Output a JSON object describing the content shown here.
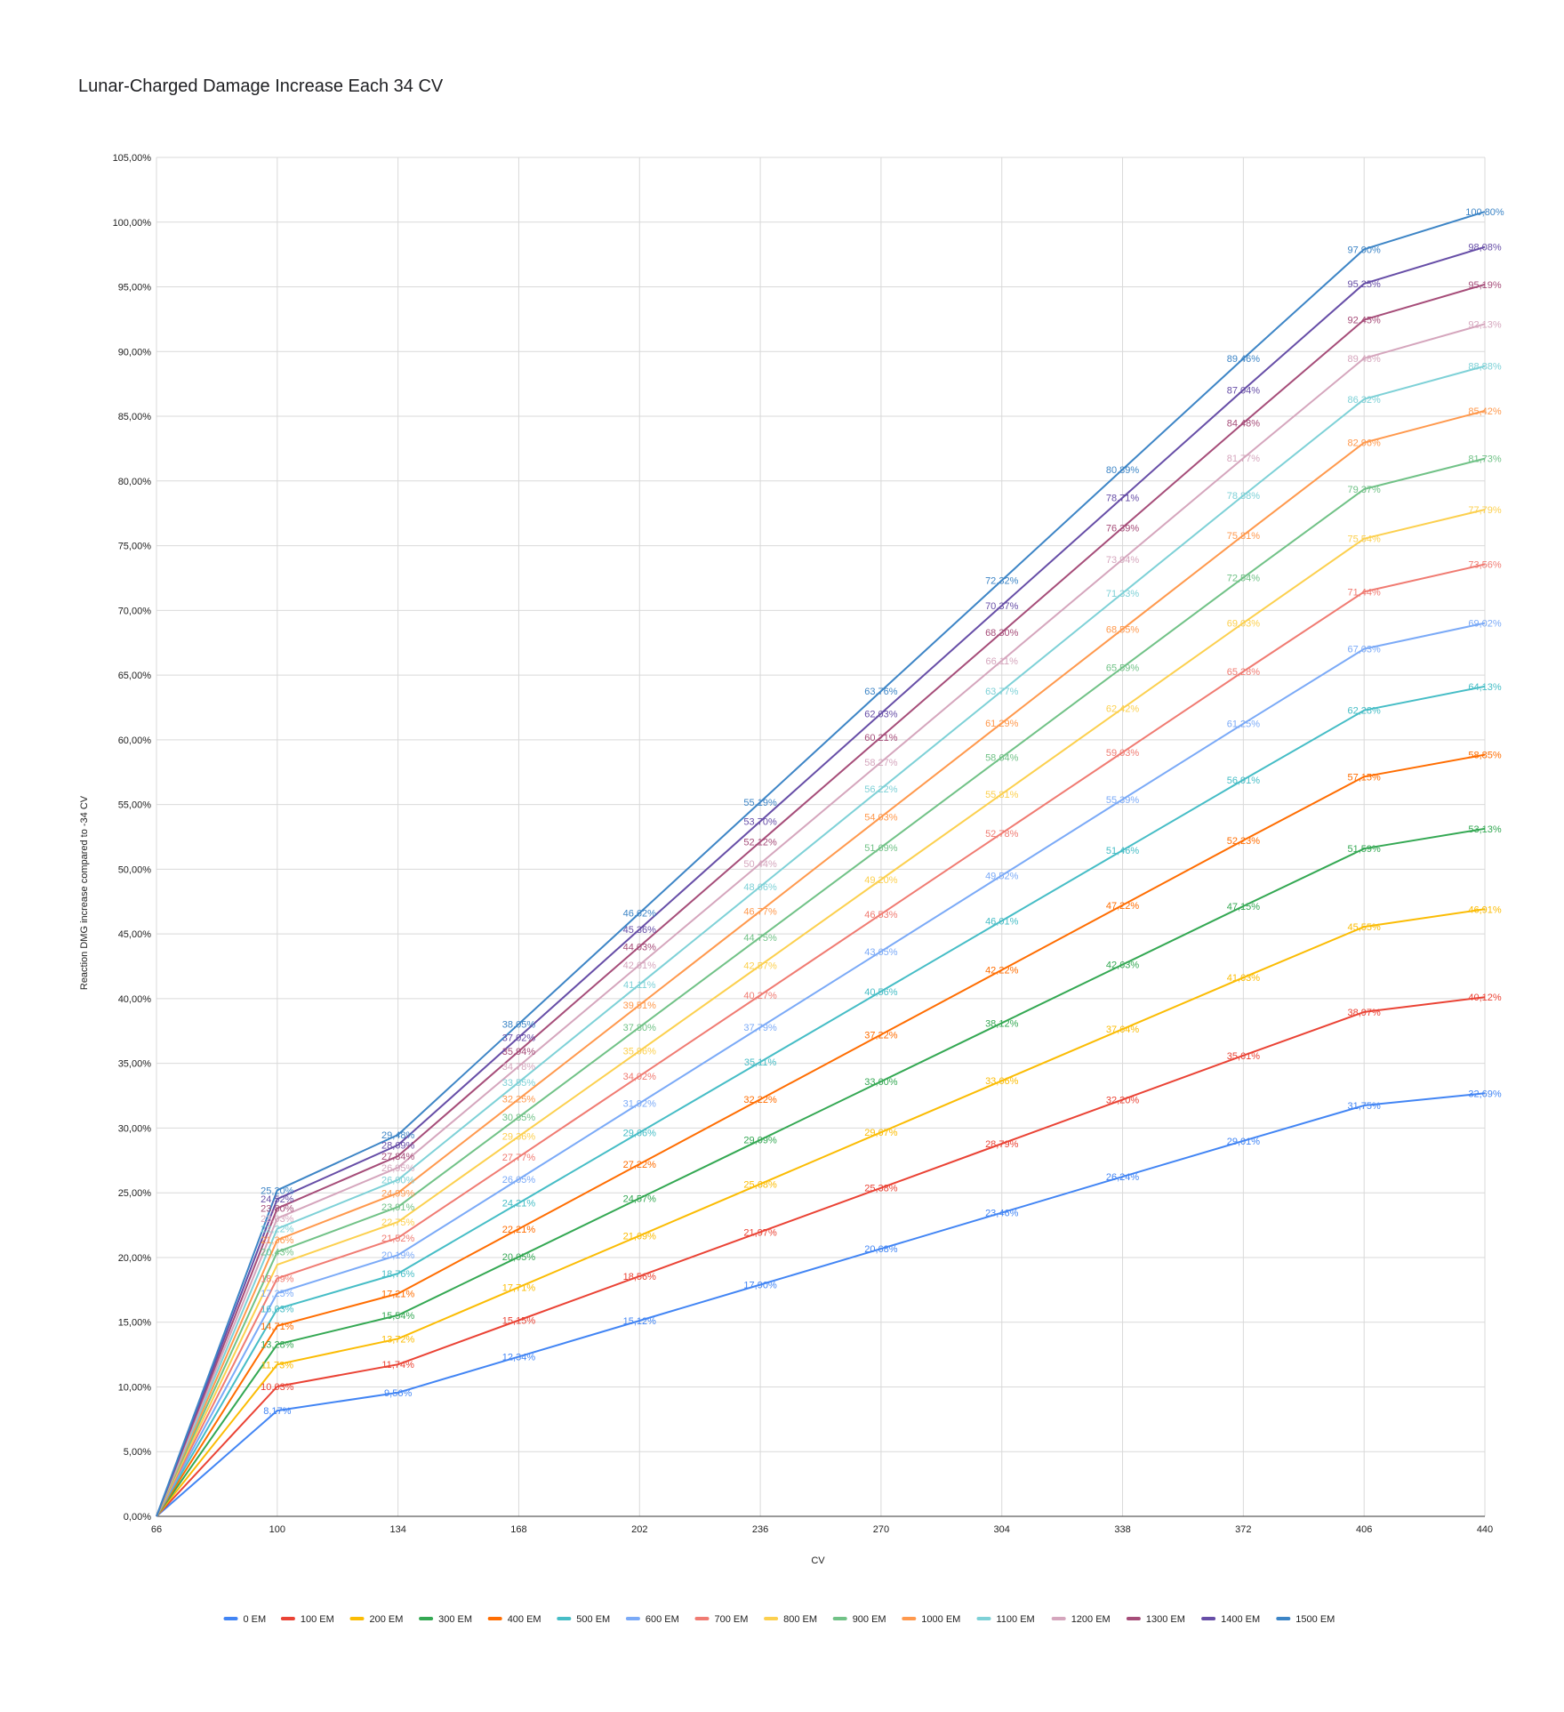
{
  "chart_data": {
    "type": "line",
    "title": "Lunar-Charged Damage Increase Each 34 CV",
    "xlabel": "CV",
    "ylabel": "Reaction DMG increase compared to -34 CV",
    "x": [
      66,
      100,
      134,
      168,
      202,
      236,
      270,
      304,
      338,
      372,
      406,
      440
    ],
    "x_tick_labels": [
      "66",
      "100",
      "134",
      "168",
      "202",
      "236",
      "270",
      "304",
      "338",
      "372",
      "406",
      "440"
    ],
    "ylim": [
      0,
      105
    ],
    "y_tick_labels": [
      "0,00%",
      "5,00%",
      "10,00%",
      "15,00%",
      "20,00%",
      "25,00%",
      "30,00%",
      "35,00%",
      "40,00%",
      "45,00%",
      "50,00%",
      "55,00%",
      "60,00%",
      "65,00%",
      "70,00%",
      "75,00%",
      "80,00%",
      "85,00%",
      "90,00%",
      "95,00%",
      "100,00%",
      "105,00%"
    ],
    "grid": true,
    "legend_position": "bottom",
    "series": [
      {
        "name": "0 EM",
        "color": "#4285f4",
        "values": [
          0,
          8.17,
          9.56,
          12.34,
          15.12,
          17.9,
          20.68,
          23.46,
          26.24,
          29.01,
          31.75,
          32.69
        ],
        "labels": [
          "",
          "8,17%",
          "9,56%",
          "12,34%",
          "15,12%",
          "17,90%",
          "20,68%",
          "23,46%",
          "26,24%",
          "29,01%",
          "31,75%",
          "32,69%"
        ]
      },
      {
        "name": "100 EM",
        "color": "#ea4335",
        "values": [
          0,
          10.03,
          11.74,
          15.15,
          18.56,
          21.97,
          25.38,
          28.79,
          32.2,
          35.61,
          38.97,
          40.12
        ],
        "labels": [
          "",
          "10,03%",
          "11,74%",
          "15,15%",
          "18,56%",
          "21,97%",
          "25,38%",
          "28,79%",
          "32,20%",
          "35,61%",
          "38,97%",
          "40,12%"
        ]
      },
      {
        "name": "200 EM",
        "color": "#fbbc04",
        "values": [
          0,
          11.73,
          13.72,
          17.71,
          21.69,
          25.68,
          29.67,
          33.66,
          37.64,
          41.63,
          45.55,
          46.91
        ],
        "labels": [
          "",
          "11,73%",
          "13,72%",
          "17,71%",
          "21,69%",
          "25,68%",
          "29,67%",
          "33,66%",
          "37,64%",
          "41,63%",
          "45,55%",
          "46,91%"
        ]
      },
      {
        "name": "300 EM",
        "color": "#34a853",
        "values": [
          0,
          13.28,
          15.54,
          20.05,
          24.57,
          29.09,
          33.6,
          38.12,
          42.63,
          47.15,
          51.59,
          53.13
        ],
        "labels": [
          "",
          "13,28%",
          "15,54%",
          "20,05%",
          "24,57%",
          "29,09%",
          "33,60%",
          "38,12%",
          "42,63%",
          "47,15%",
          "51,59%",
          "53,13%"
        ]
      },
      {
        "name": "400 EM",
        "color": "#ff6d01",
        "values": [
          0,
          14.71,
          17.21,
          22.21,
          27.22,
          32.22,
          37.22,
          42.22,
          47.22,
          52.23,
          57.15,
          58.85
        ],
        "labels": [
          "",
          "14,71%",
          "17,21%",
          "22,21%",
          "27,22%",
          "32,22%",
          "37,22%",
          "42,22%",
          "47,22%",
          "52,23%",
          "57,15%",
          "58,85%"
        ]
      },
      {
        "name": "500 EM",
        "color": "#46bdc6",
        "values": [
          0,
          16.03,
          18.76,
          24.21,
          29.66,
          35.11,
          40.56,
          46.01,
          51.46,
          56.91,
          62.28,
          64.13
        ],
        "labels": [
          "",
          "16,03%",
          "18,76%",
          "24,21%",
          "29,66%",
          "35,11%",
          "40,56%",
          "46,01%",
          "51,46%",
          "56,91%",
          "62,28%",
          "64,13%"
        ]
      },
      {
        "name": "600 EM",
        "color": "#7baaf7",
        "values": [
          0,
          17.25,
          20.19,
          26.05,
          31.92,
          37.79,
          43.65,
          49.52,
          55.39,
          61.25,
          67.03,
          69.02
        ],
        "labels": [
          "",
          "17,25%",
          "20,19%",
          "26,05%",
          "31,92%",
          "37,79%",
          "43,65%",
          "49,52%",
          "55,39%",
          "61,25%",
          "67,03%",
          "69,02%"
        ]
      },
      {
        "name": "700 EM",
        "color": "#f07b72",
        "values": [
          0,
          18.39,
          21.52,
          27.77,
          34.02,
          40.27,
          46.53,
          52.78,
          59.03,
          65.28,
          71.44,
          73.56
        ],
        "labels": [
          "",
          "18,39%",
          "21,52%",
          "27,77%",
          "34,02%",
          "40,27%",
          "46,53%",
          "52,78%",
          "59,03%",
          "65,28%",
          "71,44%",
          "73,56%"
        ]
      },
      {
        "name": "800 EM",
        "color": "#fcd04f",
        "values": [
          0,
          19.44,
          22.75,
          29.36,
          35.96,
          42.57,
          49.2,
          55.81,
          62.42,
          69.03,
          75.54,
          77.79
        ],
        "labels": [
          "",
          "",
          "22,75%",
          "29,36%",
          "35,96%",
          "42,57%",
          "49,20%",
          "55,81%",
          "62,42%",
          "69,03%",
          "75,54%",
          "77,79%"
        ]
      },
      {
        "name": "900 EM",
        "color": "#71c287",
        "values": [
          0,
          20.43,
          23.91,
          30.85,
          37.8,
          44.75,
          51.69,
          58.64,
          65.59,
          72.54,
          79.37,
          81.73
        ],
        "labels": [
          "",
          "20,43%",
          "23,91%",
          "30,85%",
          "37,80%",
          "44,75%",
          "51,69%",
          "58,64%",
          "65,59%",
          "72,54%",
          "79,37%",
          "81,73%"
        ]
      },
      {
        "name": "1000 EM",
        "color": "#ff994d",
        "values": [
          0,
          21.36,
          24.99,
          32.25,
          39.51,
          46.77,
          54.03,
          61.29,
          68.55,
          75.81,
          82.96,
          85.42
        ],
        "labels": [
          "",
          "21,36%",
          "24,99%",
          "32,25%",
          "39,51%",
          "46,77%",
          "54,03%",
          "61,29%",
          "68,55%",
          "75,81%",
          "82,96%",
          "85,42%"
        ]
      },
      {
        "name": "1100 EM",
        "color": "#7ed1d7",
        "values": [
          0,
          22.22,
          26.0,
          33.55,
          41.11,
          48.66,
          56.22,
          63.77,
          71.33,
          78.88,
          86.32,
          88.88
        ],
        "labels": [
          "",
          "22,22%",
          "26,00%",
          "33,55%",
          "41,11%",
          "48,66%",
          "56,22%",
          "63,77%",
          "71,33%",
          "78,88%",
          "86,32%",
          "88,88%"
        ]
      },
      {
        "name": "1200 EM",
        "color": "#d5a6bd",
        "values": [
          0,
          23.03,
          26.95,
          34.78,
          42.61,
          50.44,
          58.27,
          66.11,
          73.94,
          81.77,
          89.48,
          92.13
        ],
        "labels": [
          "",
          "23,03%",
          "26,95%",
          "34,78%",
          "42,61%",
          "50,44%",
          "58,27%",
          "66,11%",
          "73,94%",
          "81,77%",
          "89,48%",
          "92,13%"
        ]
      },
      {
        "name": "1300 EM",
        "color": "#a64d79",
        "values": [
          0,
          23.8,
          27.84,
          35.94,
          44.03,
          52.12,
          60.21,
          68.3,
          76.39,
          84.48,
          92.45,
          95.19
        ],
        "labels": [
          "",
          "23,80%",
          "27,84%",
          "35,94%",
          "44,03%",
          "52,12%",
          "60,21%",
          "68,30%",
          "76,39%",
          "84,48%",
          "92,45%",
          "95,19%"
        ]
      },
      {
        "name": "1400 EM",
        "color": "#674ea7",
        "values": [
          0,
          24.52,
          28.69,
          37.02,
          45.36,
          53.7,
          62.03,
          70.37,
          78.71,
          87.04,
          95.25,
          98.08
        ],
        "labels": [
          "",
          "24,52%",
          "28,69%",
          "37,02%",
          "45,36%",
          "53,70%",
          "62,03%",
          "70,37%",
          "78,71%",
          "87,04%",
          "95,25%",
          "98,08%"
        ]
      },
      {
        "name": "1500 EM",
        "color": "#3d85c6",
        "values": [
          0,
          25.2,
          29.48,
          38.05,
          46.62,
          55.19,
          63.76,
          72.32,
          80.89,
          89.46,
          97.9,
          100.8
        ],
        "labels": [
          "",
          "25,20%",
          "29,48%",
          "38,05%",
          "46,62%",
          "55,19%",
          "63,76%",
          "72,32%",
          "80,89%",
          "89,46%",
          "97,90%",
          "100,80%"
        ]
      }
    ]
  }
}
